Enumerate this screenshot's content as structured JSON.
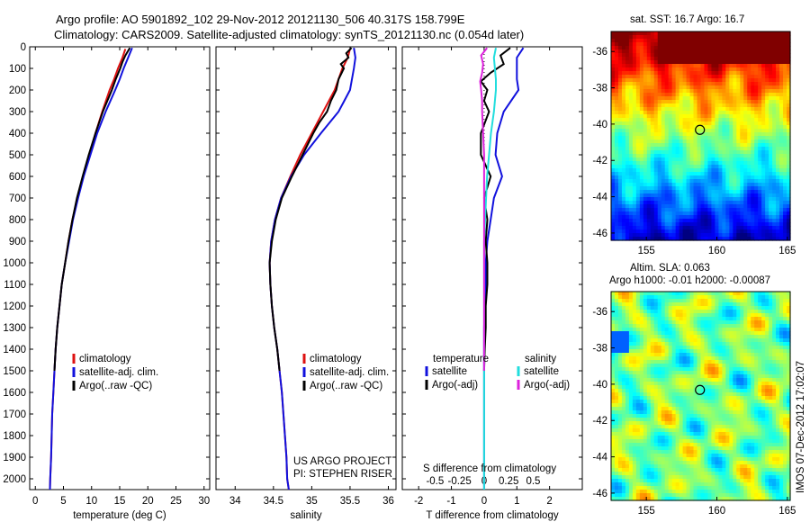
{
  "header": {
    "line1": "Argo profile: AO 5901892_102 29-Nov-2012 20121130_506 40.317S 158.799E",
    "line2": "Climatology: CARS2009. Satellite-adjusted climatology: synTS_20121130.nc (0.054d later)"
  },
  "colors": {
    "climatology": "#dd1111",
    "satellite": "#1111dd",
    "argo": "#000000",
    "sal_satellite": "#22dddd",
    "sal_argo": "#dd22dd"
  },
  "chart_data": [
    {
      "type": "line",
      "panel": "temperature",
      "xlabel": "temperature (deg C)",
      "xlim": [
        -1,
        31
      ],
      "xticks": [
        0,
        5,
        10,
        15,
        20,
        25,
        30
      ],
      "ylim": [
        2050,
        0
      ],
      "yticks": [
        0,
        100,
        200,
        300,
        400,
        500,
        600,
        700,
        800,
        900,
        1000,
        1100,
        1200,
        1300,
        1400,
        1500,
        1600,
        1700,
        1800,
        1900,
        2000
      ],
      "legend": [
        "climatology",
        "satellite-adj. clim.",
        "Argo(..raw -QC)"
      ],
      "series": [
        {
          "key": "climatology",
          "depth": [
            10,
            50,
            100,
            150,
            200,
            300,
            400,
            500,
            600,
            700,
            800,
            900,
            1000,
            1100,
            1200,
            1300,
            1400,
            1500,
            1600,
            1700,
            1800,
            1900,
            2000,
            2050
          ],
          "values": [
            16.0,
            15.5,
            14.7,
            14.0,
            13.2,
            11.9,
            10.7,
            9.6,
            8.5,
            7.5,
            6.6,
            5.9,
            5.3,
            4.7,
            4.3,
            3.9,
            3.6,
            3.4,
            3.2,
            3.0,
            2.9,
            2.8,
            2.65,
            2.6
          ]
        },
        {
          "key": "satellite",
          "depth": [
            5,
            50,
            100,
            150,
            200,
            300,
            400,
            500,
            600,
            700,
            800,
            900,
            1000,
            1100,
            1200,
            1300,
            1400,
            1500,
            1600,
            1700,
            1800,
            1900,
            2000,
            2050
          ],
          "values": [
            17.2,
            16.5,
            15.7,
            15.0,
            14.2,
            12.5,
            11.0,
            9.8,
            8.6,
            7.6,
            6.7,
            6.0,
            5.3,
            4.7,
            4.3,
            3.9,
            3.6,
            3.4,
            3.2,
            3.0,
            2.9,
            2.8,
            2.65,
            2.6
          ]
        },
        {
          "key": "argo",
          "depth": [
            5,
            40,
            70,
            100,
            150,
            200,
            250,
            300,
            400,
            500,
            600,
            700,
            800,
            900,
            1000,
            1100,
            1200,
            1300,
            1400,
            1500
          ],
          "values": [
            16.8,
            16.0,
            15.5,
            15.1,
            14.3,
            13.6,
            12.8,
            12.0,
            10.7,
            9.5,
            8.4,
            7.4,
            6.6,
            5.9,
            5.3,
            4.7,
            4.3,
            3.9,
            3.6,
            3.4
          ]
        }
      ]
    },
    {
      "type": "line",
      "panel": "salinity",
      "xlabel": "salinity",
      "xlim": [
        33.75,
        36.1
      ],
      "xticks": [
        34,
        34.5,
        35,
        35.5,
        36
      ],
      "ylim": [
        2050,
        0
      ],
      "legend": [
        "climatology",
        "satellite-adj. clim.",
        "Argo(..raw -QC)"
      ],
      "annotations": [
        "US ARGO PROJECT",
        "PI: STEPHEN RISER"
      ],
      "series": [
        {
          "key": "climatology",
          "depth": [
            10,
            50,
            100,
            200,
            300,
            400,
            500,
            600,
            700,
            800,
            900,
            1000,
            1100,
            1200,
            1300,
            1400,
            1500,
            1600,
            1700,
            1800,
            1900,
            2000,
            2050
          ],
          "values": [
            35.5,
            35.47,
            35.4,
            35.3,
            35.15,
            35.0,
            34.85,
            34.72,
            34.6,
            34.52,
            34.47,
            34.45,
            34.46,
            34.48,
            34.51,
            34.55,
            34.58,
            34.61,
            34.63,
            34.65,
            34.67,
            34.68,
            34.7
          ]
        },
        {
          "key": "satellite",
          "depth": [
            5,
            50,
            100,
            200,
            300,
            400,
            500,
            600,
            700,
            800,
            900,
            1000,
            1100,
            1200,
            1300,
            1400,
            1500,
            1600,
            1700,
            1800,
            1900,
            2000,
            2050
          ],
          "values": [
            35.55,
            35.57,
            35.55,
            35.5,
            35.35,
            35.12,
            34.9,
            34.73,
            34.6,
            34.52,
            34.47,
            34.45,
            34.46,
            34.48,
            34.51,
            34.55,
            34.58,
            34.61,
            34.63,
            34.65,
            34.67,
            34.68,
            34.7
          ]
        },
        {
          "key": "argo",
          "depth": [
            5,
            30,
            50,
            80,
            100,
            150,
            200,
            250,
            300,
            350,
            400,
            500,
            600,
            700,
            800,
            900,
            1000,
            1100,
            1200,
            1300,
            1400,
            1500
          ],
          "values": [
            35.52,
            35.45,
            35.48,
            35.38,
            35.42,
            35.35,
            35.32,
            35.25,
            35.2,
            35.1,
            35.02,
            34.88,
            34.74,
            34.61,
            34.53,
            34.48,
            34.45,
            34.46,
            34.48,
            34.51,
            34.55,
            34.58
          ]
        }
      ]
    },
    {
      "type": "line",
      "panel": "differences",
      "xlabel": "T difference from climatology",
      "xlabel2": "S difference from climatology",
      "xlim": [
        -2.5,
        3.0
      ],
      "xticks": [
        -2,
        -1,
        0,
        1,
        2
      ],
      "xticks_s": [
        "-0.5",
        "-0.25",
        "0",
        "0.25",
        "0.5"
      ],
      "ylim": [
        2050,
        0
      ],
      "legend_left_title": "temperature",
      "legend_right_title": "salinity",
      "legend_left": [
        "satellite",
        "Argo(-adj)"
      ],
      "legend_right": [
        "satellite",
        "Argo(-adj)"
      ],
      "series": [
        {
          "key": "satellite",
          "depth": [
            5,
            50,
            100,
            150,
            200,
            300,
            400,
            500,
            600,
            700,
            800,
            900,
            1000,
            1100,
            1200,
            1300,
            1400,
            1500,
            1600,
            1800,
            2000,
            2050
          ],
          "values": [
            1.2,
            1.0,
            1.0,
            1.0,
            1.05,
            0.6,
            0.4,
            0.35,
            0.55,
            0.3,
            0.2,
            0.1,
            0.05,
            0.05,
            0.02,
            0.0,
            0.0,
            0.0,
            0.0,
            0.0,
            0.0,
            0.0
          ]
        },
        {
          "key": "argo",
          "depth": [
            5,
            40,
            80,
            120,
            160,
            200,
            250,
            300,
            400,
            500,
            600,
            700,
            800,
            900,
            1000,
            1100,
            1200,
            1300,
            1400,
            1500
          ],
          "values": [
            0.8,
            0.5,
            0.6,
            0.2,
            -0.1,
            0.1,
            0.0,
            0.15,
            -0.1,
            -0.1,
            0.2,
            0.0,
            0.1,
            0.05,
            0.1,
            0.1,
            0.05,
            0.05,
            0.02,
            0.0
          ]
        },
        {
          "key": "sal_satellite",
          "depth": [
            5,
            50,
            100,
            150,
            200,
            300,
            400,
            500,
            600,
            700,
            800,
            900,
            1000,
            1100,
            1200,
            1300,
            1400,
            1500,
            1600,
            1800,
            2000,
            2050
          ],
          "values": [
            0.12,
            0.1,
            0.11,
            0.12,
            0.12,
            0.1,
            0.07,
            0.05,
            0.03,
            0.02,
            0.01,
            0.0,
            0.0,
            0.0,
            0.0,
            0.0,
            0.0,
            0.0,
            0.0,
            0.0,
            0.0,
            0.0
          ]
        },
        {
          "key": "sal_argo",
          "depth": [
            5,
            40,
            80,
            120,
            160,
            200,
            250,
            300,
            400,
            500,
            600,
            700,
            800,
            900,
            1000,
            1100,
            1200,
            1300,
            1400,
            1500
          ],
          "values": [
            0.03,
            -0.03,
            -0.01,
            -0.02,
            -0.04,
            -0.03,
            -0.02,
            -0.02,
            -0.01,
            0.0,
            0.0,
            0.0,
            0.0,
            0.0,
            0.0,
            0.0,
            0.0,
            0.0,
            0.0,
            0.0
          ]
        }
      ]
    },
    {
      "type": "heatmap",
      "panel": "sst-map",
      "title": "sat. SST: 16.7 Argo: 16.7",
      "xlim": [
        152.5,
        165.2
      ],
      "ylim": [
        -46.4,
        -34.9
      ],
      "xticks": [
        155,
        160,
        165
      ],
      "yticks": [
        -36,
        -38,
        -40,
        -42,
        -44,
        -46
      ],
      "marker": {
        "lon": 158.799,
        "lat": -40.317
      }
    },
    {
      "type": "heatmap",
      "panel": "sla-map",
      "title": "Altim. SLA: 0.063",
      "subtitle": "Argo h1000: -0.01 h2000: -0.00087",
      "xlim": [
        152.5,
        165.2
      ],
      "ylim": [
        -46.4,
        -34.9
      ],
      "xticks": [
        155,
        160,
        165
      ],
      "yticks": [
        -36,
        -38,
        -40,
        -42,
        -44,
        -46
      ],
      "marker": {
        "lon": 158.799,
        "lat": -40.317
      }
    }
  ],
  "side_label": "IMOS 07-Dec-2012 17:02:07"
}
